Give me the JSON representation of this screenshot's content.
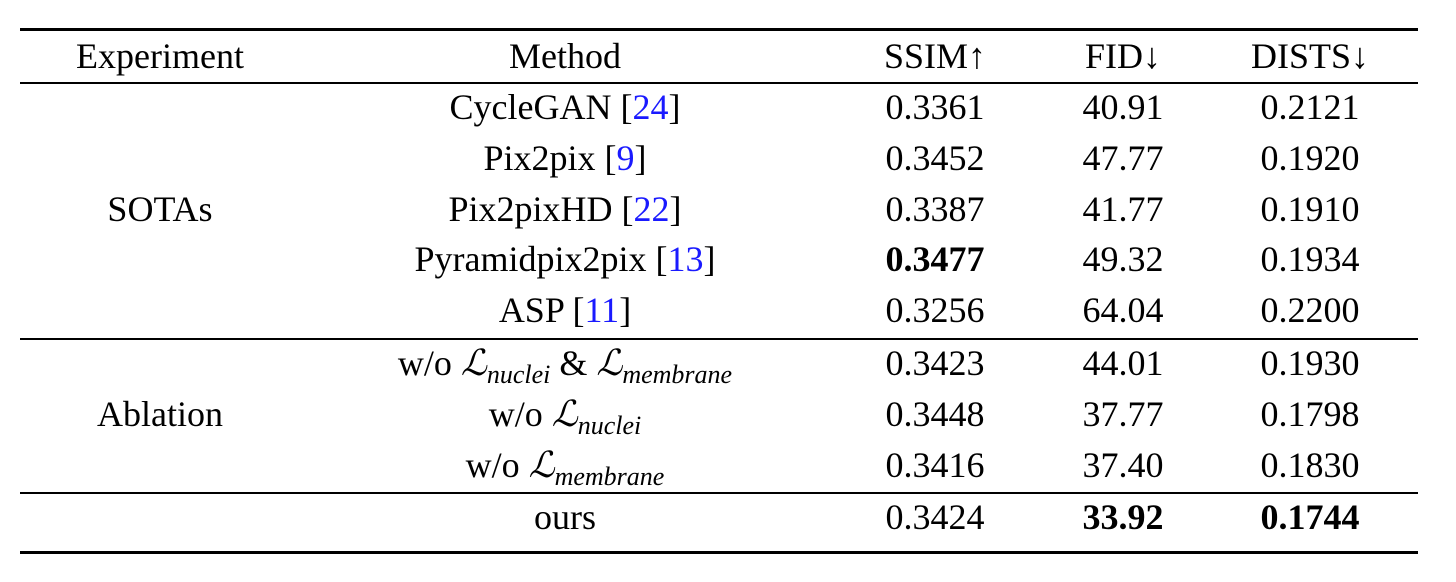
{
  "table": {
    "header": [
      "Experiment",
      "Method",
      "SSIM↑",
      "FID↓",
      "DISTS↓"
    ],
    "groups": [
      {
        "label": "SOTAs",
        "rows": [
          {
            "method": [
              {
                "text": "CycleGAN ["
              },
              {
                "text": "24",
                "kind": "cite"
              },
              {
                "text": "]"
              }
            ],
            "ssim": "0.3361",
            "fid": "40.91",
            "dists": "0.2121"
          },
          {
            "method": [
              {
                "text": "Pix2pix ["
              },
              {
                "text": "9",
                "kind": "cite"
              },
              {
                "text": "]"
              }
            ],
            "ssim": "0.3452",
            "fid": "47.77",
            "dists": "0.1920"
          },
          {
            "method": [
              {
                "text": "Pix2pixHD ["
              },
              {
                "text": "22",
                "kind": "cite"
              },
              {
                "text": "]"
              }
            ],
            "ssim": "0.3387",
            "fid": "41.77",
            "dists": "0.1910"
          },
          {
            "method": [
              {
                "text": "Pyramidpix2pix ["
              },
              {
                "text": "13",
                "kind": "cite"
              },
              {
                "text": "]"
              }
            ],
            "ssim": "0.3477",
            "fid": "49.32",
            "dists": "0.1934",
            "bold": [
              "ssim"
            ]
          },
          {
            "method": [
              {
                "text": "ASP ["
              },
              {
                "text": "11",
                "kind": "cite"
              },
              {
                "text": "]"
              }
            ],
            "ssim": "0.3256",
            "fid": "64.04",
            "dists": "0.2200"
          }
        ]
      },
      {
        "label": "Ablation",
        "rows": [
          {
            "method": [
              {
                "text": "w/o "
              },
              {
                "text": "ℒ",
                "kind": "math"
              },
              {
                "text": "nuclei",
                "kind": "sub"
              },
              {
                "text": " & "
              },
              {
                "text": "ℒ",
                "kind": "math"
              },
              {
                "text": "membrane",
                "kind": "sub"
              }
            ],
            "ssim": "0.3423",
            "fid": "44.01",
            "dists": "0.1930"
          },
          {
            "method": [
              {
                "text": "w/o "
              },
              {
                "text": "ℒ",
                "kind": "math"
              },
              {
                "text": "nuclei",
                "kind": "sub"
              }
            ],
            "ssim": "0.3448",
            "fid": "37.77",
            "dists": "0.1798"
          },
          {
            "method": [
              {
                "text": "w/o "
              },
              {
                "text": "ℒ",
                "kind": "math"
              },
              {
                "text": "membrane",
                "kind": "sub"
              }
            ],
            "ssim": "0.3416",
            "fid": "37.40",
            "dists": "0.1830"
          }
        ]
      },
      {
        "rows": [
          {
            "method": [
              {
                "text": "ours"
              }
            ],
            "ssim": "0.3424",
            "fid": "33.92",
            "dists": "0.1744",
            "bold": [
              "fid",
              "dists"
            ]
          }
        ]
      }
    ]
  }
}
